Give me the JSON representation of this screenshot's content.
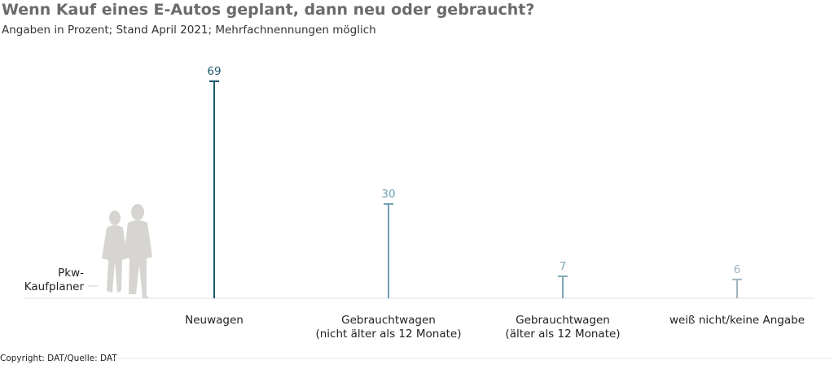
{
  "chart_data": {
    "type": "lollipop",
    "title": "Wenn Kauf eines E-Autos geplant, dann neu oder gebraucht?",
    "subtitle": "Angaben in Prozent; Stand April 2021; Mehrfachnennungen möglich",
    "categories": [
      "Neuwagen",
      "Gebrauchtwagen\n(nicht älter als 12 Monate)",
      "Gebrauchtwagen\n(älter als 12 Monate)",
      "weiß nicht/keine Angabe"
    ],
    "values": [
      69,
      30,
      7,
      6
    ],
    "colors": [
      "#1f5a6e",
      "#6f9fb3",
      "#7ea6b7",
      "#a2b5c1"
    ],
    "ylim": [
      0,
      69
    ],
    "annotation": "Pkw-\nKaufplaner",
    "source": "Copyright: DAT/Quelle: DAT"
  }
}
